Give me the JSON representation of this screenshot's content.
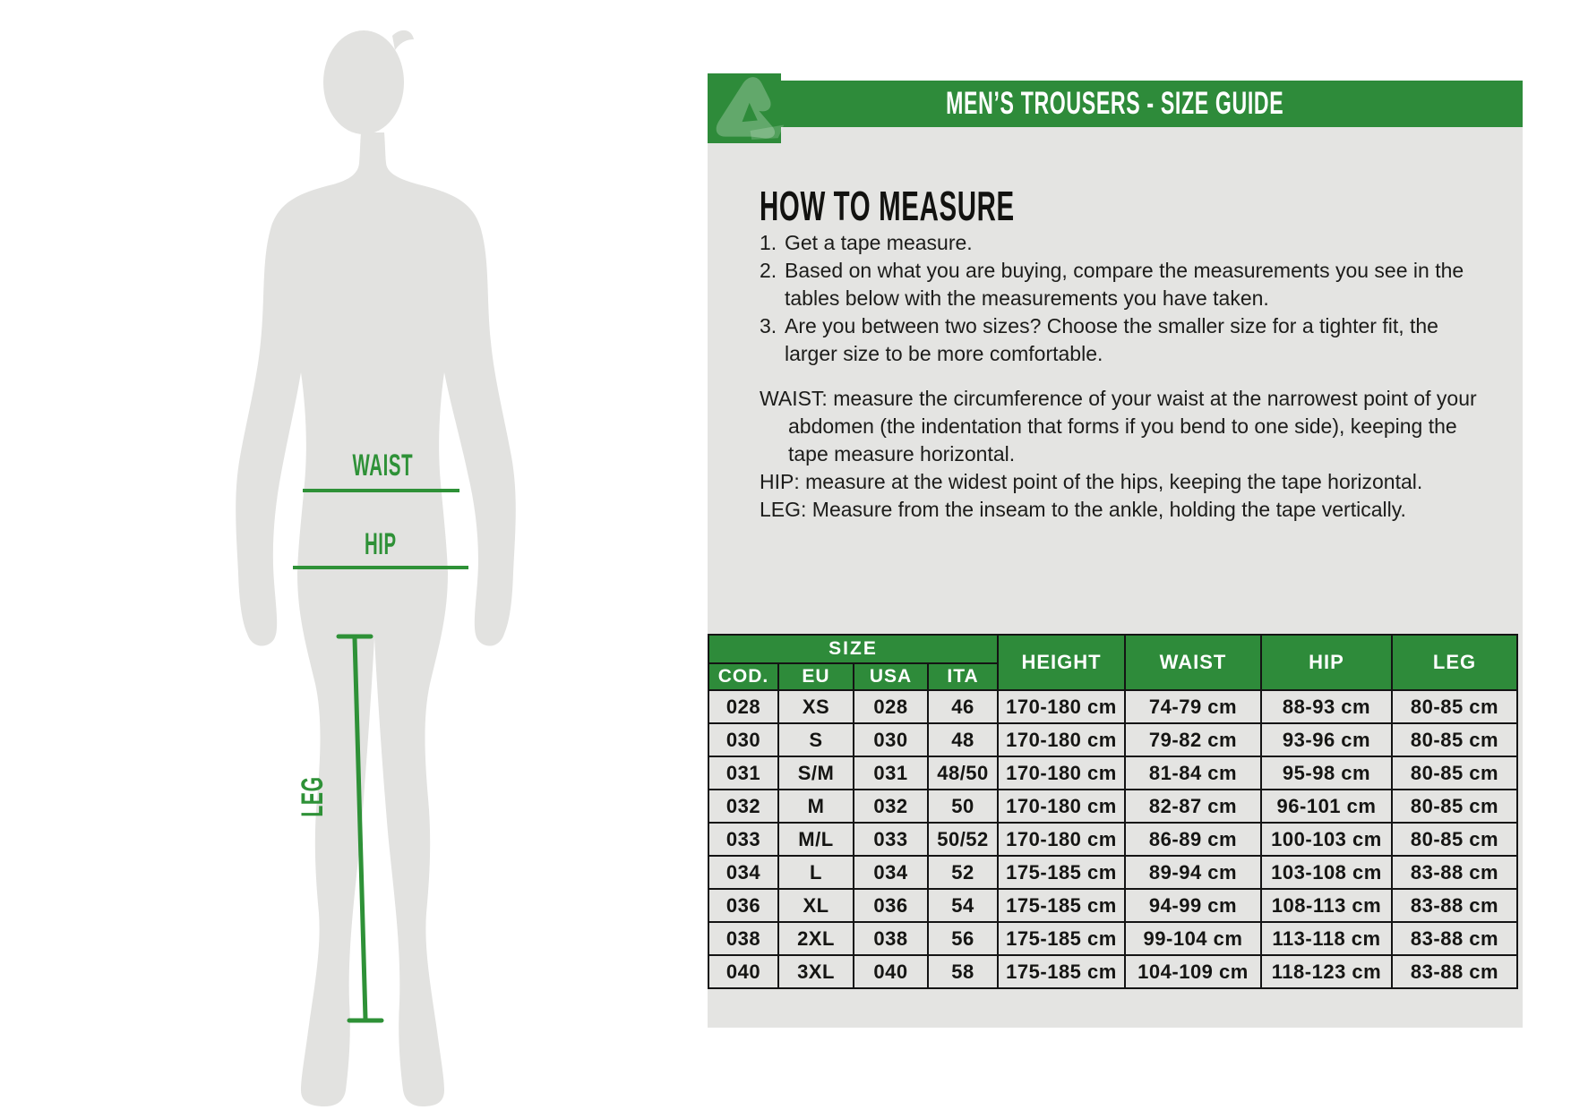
{
  "colors": {
    "green_dark": "#2e8b3a",
    "green_bright": "#2e9137",
    "panel_gray": "#e4e4e2",
    "silhouette_gray": "#e2e2e0",
    "border_black": "#141414"
  },
  "header": {
    "title": "MEN’S TROUSERS - SIZE GUIDE",
    "logo": "acerbis-logo"
  },
  "figure": {
    "labels": {
      "waist": "WAIST",
      "hip": "HIP",
      "leg": "LEG"
    }
  },
  "how_to_measure": {
    "heading": "HOW TO MEASURE",
    "steps": [
      "Get a tape measure.",
      "Based on what you are buying, compare the measurements you see in the tables below with the measurements you have taken.",
      "Are you between two sizes? Choose the smaller size for a tighter fit, the larger size to be more comfortable."
    ],
    "tips": [
      "WAIST: measure the circumference of your waist at the narrowest point of your abdomen (the indentation that forms if you bend to one side), keeping the tape measure horizontal.",
      "HIP: measure at the widest point of the hips, keeping the tape horizontal.",
      "LEG: Measure from the inseam to the ankle, holding the tape vertically."
    ]
  },
  "table": {
    "size_group_header": "SIZE",
    "size_columns": [
      "COD.",
      "EU",
      "USA",
      "ITA"
    ],
    "measure_columns": [
      "HEIGHT",
      "WAIST",
      "HIP",
      "LEG"
    ],
    "rows": [
      [
        "028",
        "XS",
        "028",
        "46",
        "170-180 cm",
        "74-79 cm",
        "88-93 cm",
        "80-85 cm"
      ],
      [
        "030",
        "S",
        "030",
        "48",
        "170-180 cm",
        "79-82 cm",
        "93-96 cm",
        "80-85 cm"
      ],
      [
        "031",
        "S/M",
        "031",
        "48/50",
        "170-180 cm",
        "81-84 cm",
        "95-98 cm",
        "80-85 cm"
      ],
      [
        "032",
        "M",
        "032",
        "50",
        "170-180 cm",
        "82-87 cm",
        "96-101 cm",
        "80-85 cm"
      ],
      [
        "033",
        "M/L",
        "033",
        "50/52",
        "170-180 cm",
        "86-89 cm",
        "100-103 cm",
        "80-85 cm"
      ],
      [
        "034",
        "L",
        "034",
        "52",
        "175-185 cm",
        "89-94 cm",
        "103-108 cm",
        "83-88 cm"
      ],
      [
        "036",
        "XL",
        "036",
        "54",
        "175-185 cm",
        "94-99 cm",
        "108-113 cm",
        "83-88 cm"
      ],
      [
        "038",
        "2XL",
        "038",
        "56",
        "175-185 cm",
        "99-104 cm",
        "113-118 cm",
        "83-88 cm"
      ],
      [
        "040",
        "3XL",
        "040",
        "58",
        "175-185 cm",
        "104-109 cm",
        "118-123 cm",
        "83-88 cm"
      ]
    ]
  }
}
